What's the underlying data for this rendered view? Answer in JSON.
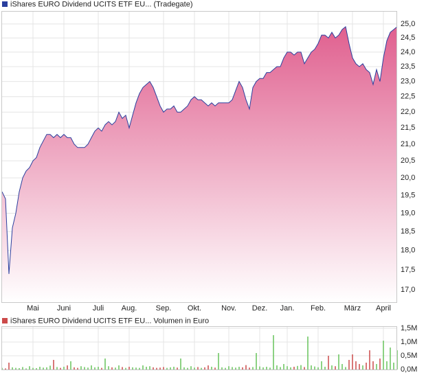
{
  "chart_data": [
    {
      "type": "area",
      "title": "iShares EURO Dividend UCITS ETF EU... (Tradegate)",
      "categories": [
        null,
        null,
        null,
        null,
        null,
        null,
        null,
        null,
        null,
        "Mai",
        null,
        null,
        null,
        null,
        null,
        null,
        null,
        null,
        "Juni",
        null,
        null,
        null,
        null,
        null,
        null,
        null,
        null,
        null,
        "Juli",
        null,
        null,
        null,
        null,
        null,
        null,
        null,
        null,
        "Aug.",
        null,
        null,
        null,
        null,
        null,
        null,
        null,
        null,
        null,
        "Sep.",
        null,
        null,
        null,
        null,
        null,
        null,
        null,
        null,
        "Okt.",
        null,
        null,
        null,
        null,
        null,
        null,
        null,
        null,
        null,
        "Nov.",
        null,
        null,
        null,
        null,
        null,
        null,
        null,
        null,
        "Dez.",
        null,
        null,
        null,
        null,
        null,
        null,
        null,
        "Jan.",
        null,
        null,
        null,
        null,
        null,
        null,
        null,
        null,
        "Feb.",
        null,
        null,
        null,
        null,
        null,
        null,
        null,
        null,
        null,
        "März",
        null,
        null,
        null,
        null,
        null,
        null,
        null,
        null,
        "April",
        null,
        null,
        null,
        null
      ],
      "values": [
        19.6,
        19.4,
        17.4,
        18.6,
        19.0,
        19.6,
        20.0,
        20.2,
        20.3,
        20.5,
        20.6,
        20.9,
        21.1,
        21.3,
        21.3,
        21.2,
        21.3,
        21.2,
        21.3,
        21.2,
        21.2,
        21.0,
        20.9,
        20.9,
        20.9,
        21.0,
        21.2,
        21.4,
        21.5,
        21.4,
        21.6,
        21.7,
        21.6,
        21.7,
        22.0,
        21.8,
        21.9,
        21.5,
        21.9,
        22.3,
        22.6,
        22.8,
        22.9,
        23.0,
        22.8,
        22.5,
        22.2,
        22.0,
        22.1,
        22.1,
        22.2,
        22.0,
        22.0,
        22.1,
        22.2,
        22.4,
        22.5,
        22.4,
        22.4,
        22.3,
        22.2,
        22.3,
        22.2,
        22.3,
        22.3,
        22.3,
        22.3,
        22.4,
        22.7,
        23.0,
        22.8,
        22.4,
        22.1,
        22.8,
        23.0,
        23.1,
        23.1,
        23.3,
        23.3,
        23.4,
        23.5,
        23.5,
        23.8,
        24.0,
        24.0,
        23.9,
        24.0,
        24.0,
        23.6,
        23.8,
        24.0,
        24.1,
        24.3,
        24.6,
        24.6,
        24.5,
        24.7,
        24.5,
        24.6,
        24.8,
        24.9,
        24.3,
        23.8,
        23.6,
        23.5,
        23.6,
        23.4,
        23.3,
        22.9,
        23.4,
        23.0,
        23.8,
        24.4,
        24.7,
        24.8,
        24.9
      ],
      "line_color": "#2a3f9e",
      "area_color": "#e0608f",
      "log_scale": true,
      "grid": true,
      "ylim": [
        16.7,
        25.45
      ],
      "yticks": [
        {
          "value": 17.0,
          "label": "17,0"
        },
        {
          "value": 17.5,
          "label": "17,5"
        },
        {
          "value": 18.0,
          "label": "18,0"
        },
        {
          "value": 18.5,
          "label": "18,5"
        },
        {
          "value": 19.0,
          "label": "19,0"
        },
        {
          "value": 19.5,
          "label": "19,5"
        },
        {
          "value": 20.0,
          "label": "20,0"
        },
        {
          "value": 20.5,
          "label": "20,5"
        },
        {
          "value": 21.0,
          "label": "21,0"
        },
        {
          "value": 21.5,
          "label": "21,5"
        },
        {
          "value": 22.0,
          "label": "22,0"
        },
        {
          "value": 22.5,
          "label": "22,5"
        },
        {
          "value": 23.0,
          "label": "23,0"
        },
        {
          "value": 23.5,
          "label": "23,5"
        },
        {
          "value": 24.0,
          "label": "24,0"
        },
        {
          "value": 24.5,
          "label": "24,5"
        },
        {
          "value": 25.0,
          "label": "25,0"
        }
      ]
    },
    {
      "type": "bar",
      "title": "iShares EURO Dividend UCITS ETF EU... Volumen in Euro",
      "values": [
        60000,
        40000,
        250000,
        80000,
        60000,
        50000,
        90000,
        40000,
        120000,
        60000,
        50000,
        100000,
        70000,
        80000,
        140000,
        350000,
        90000,
        60000,
        100000,
        150000,
        300000,
        80000,
        60000,
        120000,
        90000,
        70000,
        150000,
        80000,
        100000,
        60000,
        400000,
        120000,
        80000,
        70000,
        150000,
        90000,
        60000,
        100000,
        80000,
        70000,
        60000,
        150000,
        100000,
        120000,
        80000,
        60000,
        70000,
        90000,
        60000,
        80000,
        100000,
        70000,
        400000,
        80000,
        60000,
        120000,
        70000,
        90000,
        60000,
        80000,
        150000,
        100000,
        70000,
        600000,
        80000,
        60000,
        120000,
        90000,
        70000,
        100000,
        80000,
        160000,
        70000,
        90000,
        600000,
        110000,
        80000,
        100000,
        70000,
        1250000,
        150000,
        90000,
        200000,
        120000,
        80000,
        100000,
        130000,
        160000,
        90000,
        1200000,
        150000,
        110000,
        80000,
        300000,
        100000,
        500000,
        150000,
        120000,
        550000,
        200000,
        90000,
        350000,
        550000,
        300000,
        200000,
        150000,
        250000,
        700000,
        300000,
        200000,
        400000,
        1050000,
        300000,
        800000,
        250000,
        700000
      ],
      "up_color": "#66c35a",
      "down_color": "#cc4a4a",
      "grid": true,
      "ylim": [
        0,
        1550000
      ],
      "yticks": [
        {
          "value": 0,
          "label": "0,0M"
        },
        {
          "value": 500000,
          "label": "0,5M"
        },
        {
          "value": 1000000,
          "label": "1,0M"
        },
        {
          "value": 1500000,
          "label": "1,5M"
        }
      ]
    }
  ]
}
